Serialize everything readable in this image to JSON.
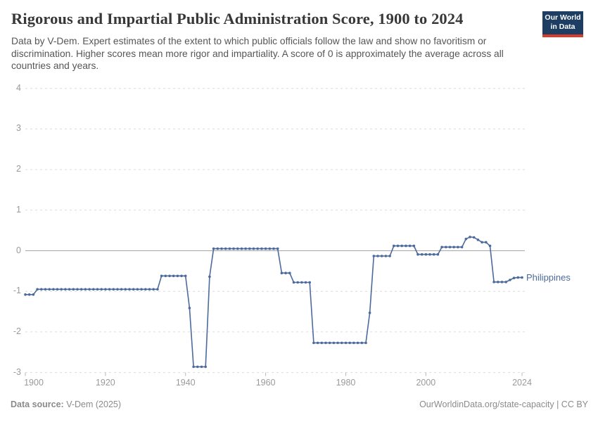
{
  "logo": {
    "line1": "Our World",
    "line2": "in Data"
  },
  "chart_data": {
    "type": "line",
    "title": "Rigorous and Impartial Public Administration Score, 1900 to 2024",
    "subtitle": "Data by V-Dem. Expert estimates of the extent to which public officials follow the law and show no favoritism or discrimination. Higher scores mean more rigor and impartiality. A score of 0 is approximately the average across all countries and years.",
    "xlim": [
      1900,
      2024
    ],
    "ylim": [
      -3,
      4
    ],
    "x_ticks": [
      1900,
      1920,
      1940,
      1960,
      1980,
      2000,
      2024
    ],
    "y_ticks": [
      4,
      3,
      2,
      1,
      0,
      -1,
      -2,
      -3
    ],
    "grid": "horizontal-dashed",
    "zero_line": true,
    "legend_position": "line-end-label",
    "series": [
      {
        "name": "Philippines",
        "color": "#4C6A9C",
        "points": [
          [
            1900,
            -1.08
          ],
          [
            1901,
            -1.08
          ],
          [
            1902,
            -1.08
          ],
          [
            1903,
            -0.95
          ],
          [
            1904,
            -0.95
          ],
          [
            1905,
            -0.95
          ],
          [
            1906,
            -0.95
          ],
          [
            1907,
            -0.95
          ],
          [
            1908,
            -0.95
          ],
          [
            1909,
            -0.95
          ],
          [
            1910,
            -0.95
          ],
          [
            1911,
            -0.95
          ],
          [
            1912,
            -0.95
          ],
          [
            1913,
            -0.95
          ],
          [
            1914,
            -0.95
          ],
          [
            1915,
            -0.95
          ],
          [
            1916,
            -0.95
          ],
          [
            1917,
            -0.95
          ],
          [
            1918,
            -0.95
          ],
          [
            1919,
            -0.95
          ],
          [
            1920,
            -0.95
          ],
          [
            1921,
            -0.95
          ],
          [
            1922,
            -0.95
          ],
          [
            1923,
            -0.95
          ],
          [
            1924,
            -0.95
          ],
          [
            1925,
            -0.95
          ],
          [
            1926,
            -0.95
          ],
          [
            1927,
            -0.95
          ],
          [
            1928,
            -0.95
          ],
          [
            1929,
            -0.95
          ],
          [
            1930,
            -0.95
          ],
          [
            1931,
            -0.95
          ],
          [
            1932,
            -0.95
          ],
          [
            1933,
            -0.95
          ],
          [
            1934,
            -0.62
          ],
          [
            1935,
            -0.62
          ],
          [
            1936,
            -0.62
          ],
          [
            1937,
            -0.62
          ],
          [
            1938,
            -0.62
          ],
          [
            1939,
            -0.62
          ],
          [
            1940,
            -0.62
          ],
          [
            1941,
            -1.41
          ],
          [
            1942,
            -2.86
          ],
          [
            1943,
            -2.86
          ],
          [
            1944,
            -2.86
          ],
          [
            1945,
            -2.86
          ],
          [
            1946,
            -0.64
          ],
          [
            1947,
            0.05
          ],
          [
            1948,
            0.05
          ],
          [
            1949,
            0.05
          ],
          [
            1950,
            0.05
          ],
          [
            1951,
            0.05
          ],
          [
            1952,
            0.05
          ],
          [
            1953,
            0.05
          ],
          [
            1954,
            0.05
          ],
          [
            1955,
            0.05
          ],
          [
            1956,
            0.05
          ],
          [
            1957,
            0.05
          ],
          [
            1958,
            0.05
          ],
          [
            1959,
            0.05
          ],
          [
            1960,
            0.05
          ],
          [
            1961,
            0.05
          ],
          [
            1962,
            0.05
          ],
          [
            1963,
            0.05
          ],
          [
            1964,
            -0.55
          ],
          [
            1965,
            -0.55
          ],
          [
            1966,
            -0.55
          ],
          [
            1967,
            -0.78
          ],
          [
            1968,
            -0.78
          ],
          [
            1969,
            -0.78
          ],
          [
            1970,
            -0.78
          ],
          [
            1971,
            -0.78
          ],
          [
            1972,
            -2.27
          ],
          [
            1973,
            -2.27
          ],
          [
            1974,
            -2.27
          ],
          [
            1975,
            -2.27
          ],
          [
            1976,
            -2.27
          ],
          [
            1977,
            -2.27
          ],
          [
            1978,
            -2.27
          ],
          [
            1979,
            -2.27
          ],
          [
            1980,
            -2.27
          ],
          [
            1981,
            -2.27
          ],
          [
            1982,
            -2.27
          ],
          [
            1983,
            -2.27
          ],
          [
            1984,
            -2.27
          ],
          [
            1985,
            -2.27
          ],
          [
            1986,
            -1.53
          ],
          [
            1987,
            -0.13
          ],
          [
            1988,
            -0.13
          ],
          [
            1989,
            -0.13
          ],
          [
            1990,
            -0.13
          ],
          [
            1991,
            -0.13
          ],
          [
            1992,
            0.12
          ],
          [
            1993,
            0.12
          ],
          [
            1994,
            0.12
          ],
          [
            1995,
            0.12
          ],
          [
            1996,
            0.12
          ],
          [
            1997,
            0.12
          ],
          [
            1998,
            -0.09
          ],
          [
            1999,
            -0.09
          ],
          [
            2000,
            -0.09
          ],
          [
            2001,
            -0.09
          ],
          [
            2002,
            -0.09
          ],
          [
            2003,
            -0.09
          ],
          [
            2004,
            0.09
          ],
          [
            2005,
            0.09
          ],
          [
            2006,
            0.09
          ],
          [
            2007,
            0.09
          ],
          [
            2008,
            0.09
          ],
          [
            2009,
            0.09
          ],
          [
            2010,
            0.29
          ],
          [
            2011,
            0.34
          ],
          [
            2012,
            0.33
          ],
          [
            2013,
            0.27
          ],
          [
            2014,
            0.21
          ],
          [
            2015,
            0.21
          ],
          [
            2016,
            0.12
          ],
          [
            2017,
            -0.77
          ],
          [
            2018,
            -0.77
          ],
          [
            2019,
            -0.77
          ],
          [
            2020,
            -0.77
          ],
          [
            2021,
            -0.72
          ],
          [
            2022,
            -0.67
          ],
          [
            2023,
            -0.66
          ],
          [
            2024,
            -0.66
          ]
        ]
      }
    ]
  },
  "footer": {
    "source_label": "Data source:",
    "source_value": "V-Dem (2025)",
    "attribution": "OurWorldinData.org/state-capacity | CC BY"
  }
}
